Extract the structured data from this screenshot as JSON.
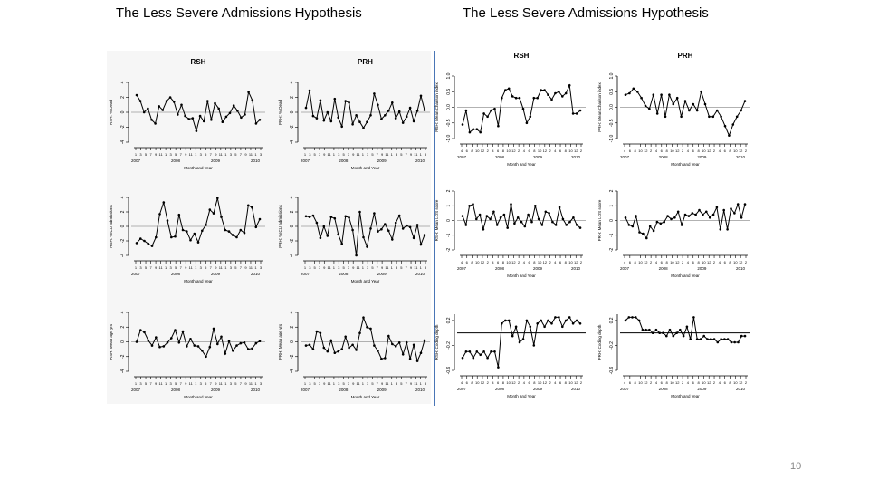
{
  "slide": {
    "title_left": "The Less Severe Admissions Hypothesis",
    "title_right": "The Less Severe Admissions Hypothesis",
    "page_number": "10"
  },
  "colors": {
    "divider": "#4a76b6",
    "line": "#000000",
    "ref": "#999999"
  },
  "chart_data": [
    {
      "type": "line",
      "panel": "left-1-RSH",
      "header": "RSH",
      "ylabel": "RSH: % Dead",
      "xlabel": "Month and Year",
      "ylim": [
        -4,
        4
      ],
      "yticks": [
        "-4",
        "-2",
        "0",
        "2",
        "4"
      ],
      "hline": 0,
      "month_ticks": "1 3 5 7 9 11 1 3 5 7 9 11 1 3 5 7 9 11 1 3 5 7 9 11 1 3",
      "year_ticks": [
        "2007",
        "2008",
        "2009",
        "2010"
      ],
      "values": [
        2.3,
        1.5,
        0,
        0.5,
        -1,
        -1.5,
        0.8,
        0.3,
        1.5,
        2,
        1.4,
        -0.3,
        1,
        -0.5,
        -0.9,
        -0.8,
        -2.5,
        -0.5,
        -1.2,
        1.5,
        -1,
        1.2,
        0.5,
        -1.3,
        -0.6,
        -0.1,
        0.9,
        0.2,
        -0.7,
        -0.3,
        2.7,
        1.6,
        -1.5,
        -1
      ]
    },
    {
      "type": "line",
      "panel": "left-1-PRH",
      "header": "PRH",
      "ylabel": "PRH: % Dead",
      "xlabel": "Month and Year",
      "ylim": [
        -4,
        4
      ],
      "yticks": [
        "-4",
        "-2",
        "0",
        "2",
        "4"
      ],
      "hline": 0,
      "month_ticks": "1 3 5 7 9 11 1 3 5 7 9 11 1 3 5 7 9 11 1 3 5 7 9 11 1 3",
      "year_ticks": [
        "2007",
        "2008",
        "2009",
        "2010"
      ],
      "values": [
        0.6,
        2.9,
        -0.5,
        -0.8,
        1.6,
        -1.1,
        0,
        -1.2,
        1.8,
        -0.7,
        -1.9,
        1.5,
        1.3,
        -1.6,
        -0.4,
        -1.3,
        -2.1,
        -1.3,
        -0.4,
        2.5,
        1,
        -0.9,
        -0.4,
        0.2,
        1.3,
        -0.8,
        0.1,
        -1.4,
        -0.6,
        0.6,
        -1.2,
        0.2,
        2.2,
        0.3
      ]
    },
    {
      "type": "line",
      "panel": "left-2-RSH",
      "header": "",
      "ylabel": "RSH: %ICU admissions",
      "xlabel": "Month and Year",
      "ylim": [
        -4,
        4
      ],
      "yticks": [
        "-4",
        "-2",
        "0",
        "2",
        "4"
      ],
      "hline": 0,
      "month_ticks": "1 3 5 7 9 11 1 3 5 7 9 11 1 3 5 7 9 11 1 3 5 7 9 11 1 3",
      "year_ticks": [
        "2007",
        "2008",
        "2009",
        "2010"
      ],
      "values": [
        -2.3,
        -1.7,
        -2,
        -2.4,
        -2.7,
        -1.5,
        1.7,
        3.3,
        0.8,
        -1.5,
        -1.4,
        1.6,
        -0.5,
        -0.7,
        -1.9,
        -1,
        -2.2,
        -0.6,
        0.2,
        2.3,
        1.8,
        3.9,
        1.3,
        -0.5,
        -0.7,
        -1.2,
        -1.5,
        -0.5,
        -0.9,
        2.9,
        2.6,
        -0.1,
        1
      ]
    },
    {
      "type": "line",
      "panel": "left-2-PRH",
      "header": "",
      "ylabel": "PRH: %ICU admissions",
      "xlabel": "Month and Year",
      "ylim": [
        -4,
        4
      ],
      "yticks": [
        "-4",
        "-2",
        "0",
        "2",
        "4"
      ],
      "hline": 0,
      "month_ticks": "1 3 5 7 9 11 1 3 5 7 9 11 1 3 5 7 9 11 1 3 5 7 9 11 1 3",
      "year_ticks": [
        "2007",
        "2008",
        "2009",
        "2010"
      ],
      "values": [
        1.4,
        1.3,
        1.5,
        0.5,
        -1.6,
        0,
        -1.3,
        1.3,
        1.1,
        -1.1,
        -2.4,
        1.4,
        1.2,
        -0.5,
        -4,
        2,
        -1.5,
        -2.8,
        -0.3,
        1.8,
        -0.7,
        -0.4,
        0.3,
        -0.6,
        -1.8,
        0.5,
        1.5,
        -0.3,
        0.1,
        -0.1,
        -1.6,
        0.2,
        -2.5,
        -1.2
      ]
    },
    {
      "type": "line",
      "panel": "left-3-RSH",
      "header": "",
      "ylabel": "RSH: Mean age yrs",
      "xlabel": "Month and Year",
      "ylim": [
        -4,
        4
      ],
      "yticks": [
        "-4",
        "-2",
        "0",
        "2",
        "4"
      ],
      "hline": 0,
      "month_ticks": "1 3 5 7 9 11 1 3 5 7 9 11 1 3 5 7 9 11 1 3 5 7 9 11 1 3",
      "year_ticks": [
        "2007",
        "2008",
        "2009",
        "2010"
      ],
      "values": [
        0,
        1.6,
        1.3,
        0.2,
        -0.5,
        0.6,
        -0.7,
        -0.6,
        -0.1,
        0.5,
        1.6,
        -0.1,
        1.4,
        -0.6,
        0.4,
        -0.5,
        -0.6,
        -1.2,
        -2,
        -0.7,
        1.8,
        -0.3,
        0.7,
        -1.6,
        0.1,
        -1.2,
        -0.5,
        -0.2,
        -0.1,
        -1,
        -0.9,
        -0.2,
        0.1
      ]
    },
    {
      "type": "line",
      "panel": "left-3-PRH",
      "header": "",
      "ylabel": "PRH: Mean age yrs",
      "xlabel": "Month and Year",
      "ylim": [
        -4,
        4
      ],
      "yticks": [
        "-4",
        "-2",
        "0",
        "2",
        "4"
      ],
      "hline": 0,
      "month_ticks": "1 3 5 7 9 11 1 3 5 7 9 11 1 3 5 7 9 11 1 3 5 7 9 11 1 3",
      "year_ticks": [
        "2007",
        "2008",
        "2009",
        "2010"
      ],
      "values": [
        -0.5,
        -0.4,
        -1,
        1.4,
        1.2,
        -0.8,
        -1.3,
        0.2,
        -1.5,
        -1.3,
        -1,
        0.7,
        -0.8,
        -0.4,
        -1.1,
        1.2,
        3.3,
        2,
        1.8,
        -0.5,
        -1.2,
        -2.3,
        -2.2,
        0.8,
        -0.3,
        -0.6,
        -0.1,
        -1.7,
        -0.1,
        -2.3,
        -0.4,
        -2.6,
        -1.5,
        0.2
      ]
    },
    {
      "type": "line",
      "panel": "right-1-RSH",
      "header": "RSH",
      "ylabel": "RSH: Mean Charlson index",
      "xlabel": "Month and Year",
      "ylim": [
        -1,
        1
      ],
      "yticks": [
        "-1.0",
        "-0.5",
        "0.0",
        "0.5",
        "1.0"
      ],
      "hline": 0,
      "month_ticks": "4 6 8 10 12 2 4 6 8 10 12 2 4 6 8 10 12 2 4 6 8 10 12 2",
      "year_ticks": [
        "2007",
        "2008",
        "2009",
        "2010"
      ],
      "values": [
        -0.55,
        -0.1,
        -0.8,
        -0.7,
        -0.7,
        -0.8,
        -0.2,
        -0.3,
        -0.1,
        -0.05,
        -0.6,
        0.3,
        0.55,
        0.6,
        0.35,
        0.3,
        0.3,
        -0.05,
        -0.5,
        -0.3,
        0.3,
        0.3,
        0.55,
        0.55,
        0.4,
        0.25,
        0.45,
        0.5,
        0.35,
        0.45,
        0.7,
        -0.2,
        -0.2,
        -0.1
      ]
    },
    {
      "type": "line",
      "panel": "right-1-PRH",
      "header": "PRH",
      "ylabel": "PRH: Mean Charlson index",
      "xlabel": "Month and Year",
      "ylim": [
        -1,
        1
      ],
      "yticks": [
        "-1.0",
        "-0.5",
        "0.0",
        "0.5",
        "1.0"
      ],
      "hline": 0,
      "month_ticks": "4 6 8 10 12 2 4 6 8 10 12 2 4 6 8 10 12 2 4 6 8 10 12 2",
      "year_ticks": [
        "2007",
        "2008",
        "2009",
        "2010"
      ],
      "values": [
        0.4,
        0.45,
        0.6,
        0.5,
        0.3,
        0.05,
        -0.05,
        0.4,
        -0.2,
        0.4,
        -0.3,
        0.4,
        0.1,
        0.3,
        -0.3,
        0.2,
        -0.1,
        0.1,
        -0.1,
        0.5,
        0.1,
        -0.3,
        -0.3,
        -0.1,
        -0.3,
        -0.6,
        -0.9,
        -0.55,
        -0.3,
        -0.1,
        0.2
      ]
    },
    {
      "type": "line",
      "panel": "right-2-RSH",
      "header": "",
      "ylabel": "RSH: Mean LOS score",
      "xlabel": "Month and Year",
      "ylim": [
        -2,
        2
      ],
      "yticks": [
        "-2",
        "-1",
        "0",
        "1",
        "2"
      ],
      "hline": 0,
      "month_ticks": "4 6 8 10 12 2 4 6 8 10 12 2 4 6 8 10 12 2 4 6 8 10 12 2",
      "year_ticks": [
        "2007",
        "2008",
        "2009",
        "2010"
      ],
      "values": [
        0.3,
        -0.3,
        1,
        1.1,
        0.1,
        0.4,
        -0.6,
        0.3,
        0.1,
        0.6,
        -0.3,
        0.2,
        0.4,
        -0.5,
        1.1,
        -0.2,
        0.2,
        -0.1,
        -0.4,
        0.4,
        -0.1,
        1,
        0.1,
        -0.3,
        0.6,
        0.5,
        -0.1,
        -0.3,
        0.9,
        0.1,
        -0.3,
        -0.1,
        0.2,
        -0.3,
        -0.5
      ]
    },
    {
      "type": "line",
      "panel": "right-2-PRH",
      "header": "",
      "ylabel": "PRH: Mean LOS score",
      "xlabel": "Month and Year",
      "ylim": [
        -2,
        2
      ],
      "yticks": [
        "-2",
        "-1",
        "0",
        "1",
        "2"
      ],
      "hline": 0,
      "month_ticks": "4 6 8 10 12 2 4 6 8 10 12 2 4 6 8 10 12 2 4 6 8 10 12 2",
      "year_ticks": [
        "2007",
        "2008",
        "2009",
        "2010"
      ],
      "values": [
        0.2,
        -0.3,
        -0.4,
        0.3,
        -0.8,
        -0.9,
        -1.2,
        -0.4,
        -0.7,
        -0.1,
        -0.2,
        -0.1,
        0.3,
        0.1,
        0.2,
        0.6,
        -0.3,
        0.4,
        0.3,
        0.5,
        0.4,
        0.7,
        0.4,
        0.6,
        0.2,
        0.4,
        0.9,
        -0.6,
        0.7,
        -0.6,
        0.8,
        0.5,
        1.1,
        0.2,
        1.1
      ]
    },
    {
      "type": "line",
      "panel": "right-3-RSH",
      "header": "",
      "ylabel": "RSH: Coding depth",
      "xlabel": "Month and Year",
      "ylim": [
        -0.6,
        0.3
      ],
      "yticks": [
        "-0.6",
        "-0.2",
        "0.2"
      ],
      "hline": 0,
      "month_ticks": "4 6 8 10 12 2 4 6 8 10 12 2 4 6 8 10 12 2 4 6 8 10 12 2",
      "year_ticks": [
        "2007",
        "2008",
        "2009",
        "2010"
      ],
      "values": [
        -0.4,
        -0.3,
        -0.3,
        -0.4,
        -0.3,
        -0.35,
        -0.3,
        -0.4,
        -0.3,
        -0.3,
        -0.55,
        0.15,
        0.2,
        0.2,
        -0.05,
        0.1,
        -0.15,
        -0.1,
        0.2,
        0.1,
        -0.2,
        0.15,
        0.2,
        0.1,
        0.2,
        0.15,
        0.25,
        0.25,
        0.1,
        0.2,
        0.25,
        0.15,
        0.2,
        0.15
      ]
    },
    {
      "type": "line",
      "panel": "right-3-PRH",
      "header": "",
      "ylabel": "PRH: Coding depth",
      "xlabel": "Month and Year",
      "ylim": [
        -0.6,
        0.3
      ],
      "yticks": [
        "-0.6",
        "-0.2",
        "0.2"
      ],
      "hline": 0,
      "month_ticks": "4 6 8 10 12 2 4 6 8 10 12 2 4 6 8 10 12 2 4 6 8 10 12 2",
      "year_ticks": [
        "2007",
        "2008",
        "2009",
        "2010"
      ],
      "values": [
        0.2,
        0.25,
        0.25,
        0.25,
        0.2,
        0.05,
        0.05,
        0.05,
        0,
        0.05,
        0,
        0,
        -0.05,
        0.05,
        -0.05,
        0,
        0.05,
        -0.05,
        0.1,
        -0.1,
        0.25,
        -0.1,
        -0.1,
        -0.05,
        -0.1,
        -0.1,
        -0.1,
        -0.15,
        -0.1,
        -0.1,
        -0.1,
        -0.15,
        -0.15,
        -0.15,
        -0.05,
        -0.05
      ]
    }
  ]
}
